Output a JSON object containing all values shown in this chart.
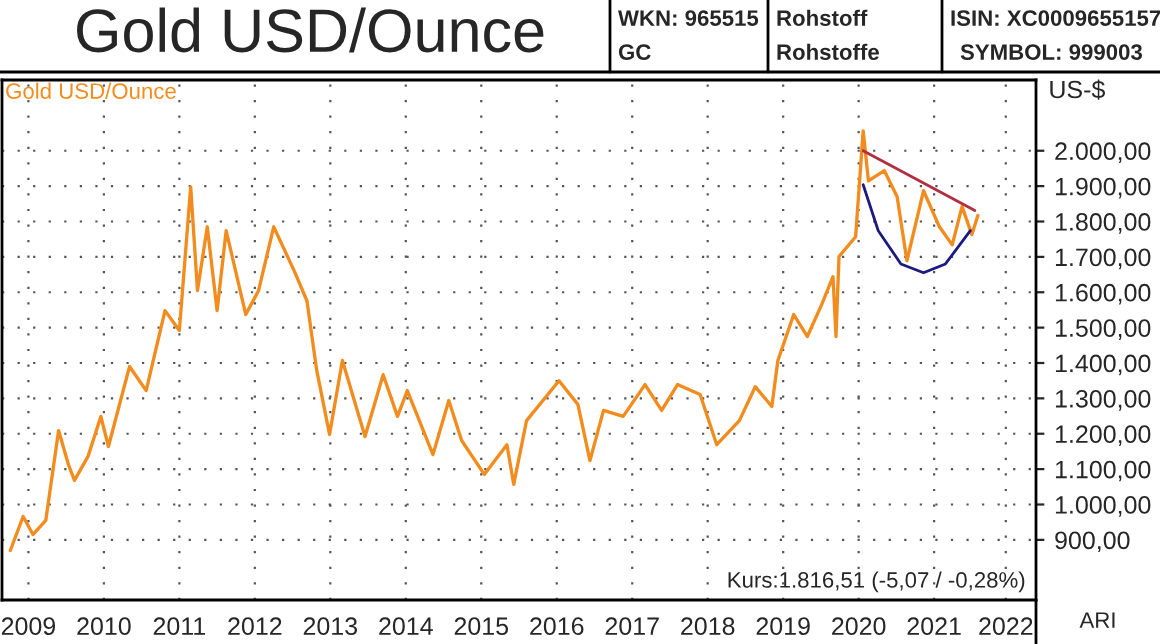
{
  "chart_data": {
    "type": "line",
    "title": "Gold USD/Ounce",
    "ylabel": "US-$",
    "annotations": [
      "WKN: 965515",
      "GC",
      "Rohstoff",
      "Rohstoffe",
      "ISIN: XC0009655157",
      "SYMBOL: 999003",
      "Kurs:1.816,51 (-5,07 / -0,28%)",
      "ARI"
    ],
    "series": [
      {
        "name": "Gold USD/Ounce",
        "color": "#f28c1e",
        "x": [
          2009.26,
          2009.43,
          2009.56,
          2009.73,
          2009.9,
          2010.03,
          2010.11,
          2010.29,
          2010.46,
          2010.56,
          2010.84,
          2011.06,
          2011.31,
          2011.5,
          2011.65,
          2011.74,
          2011.87,
          2012.0,
          2012.12,
          2012.38,
          2012.55,
          2012.75,
          2013.02,
          2013.19,
          2013.32,
          2013.49,
          2013.66,
          2013.96,
          2014.2,
          2014.39,
          2014.52,
          2014.86,
          2015.07,
          2015.24,
          2015.54,
          2015.84,
          2015.93,
          2016.1,
          2016.53,
          2016.78,
          2016.94,
          2017.12,
          2017.38,
          2017.67,
          2017.89,
          2018.1,
          2018.4,
          2018.62,
          2018.92,
          2019.13,
          2019.35,
          2019.43,
          2019.64,
          2019.82,
          2020.01,
          2020.16,
          2020.2,
          2020.24,
          2020.46,
          2020.56,
          2020.63,
          2020.84,
          2021.01,
          2021.14,
          2021.36,
          2021.57,
          2021.74,
          2021.87,
          2022.0,
          2022.08
        ],
        "values": [
          870,
          966,
          915,
          955,
          1209,
          1113,
          1068,
          1136,
          1249,
          1164,
          1390,
          1322,
          1548,
          1492,
          1898,
          1605,
          1785,
          1548,
          1774,
          1537,
          1605,
          1785,
          1661,
          1576,
          1379,
          1198,
          1407,
          1192,
          1367,
          1249,
          1322,
          1141,
          1294,
          1181,
          1085,
          1169,
          1057,
          1237,
          1350,
          1283,
          1124,
          1266,
          1249,
          1339,
          1266,
          1339,
          1311,
          1169,
          1237,
          1333,
          1277,
          1407,
          1537,
          1475,
          1565,
          1644,
          1475,
          1701,
          1757,
          2056,
          1915,
          1944,
          1870,
          1689,
          1887,
          1785,
          1734,
          1842,
          1763,
          1817
        ]
      },
      {
        "color": "#b03040",
        "x": [
          2020.56,
          2022.04
        ],
        "values": [
          2000,
          1831
        ]
      },
      {
        "color": "#1a1a80",
        "x": [
          2020.56,
          2020.76,
          2021.06,
          2021.36,
          2021.65,
          2021.98
        ],
        "values": [
          1904,
          1774,
          1680,
          1655,
          1680,
          1774
        ]
      }
    ],
    "xlim": [
      2009.15,
      2022.85
    ],
    "ylim": [
      730,
      2200
    ],
    "xticks": [
      {
        "value": 2009.5,
        "label": "2009"
      },
      {
        "value": 2010.5,
        "label": "2010"
      },
      {
        "value": 2011.5,
        "label": "2011"
      },
      {
        "value": 2012.5,
        "label": "2012"
      },
      {
        "value": 2013.5,
        "label": "2013"
      },
      {
        "value": 2014.5,
        "label": "2014"
      },
      {
        "value": 2015.5,
        "label": "2015"
      },
      {
        "value": 2016.5,
        "label": "2016"
      },
      {
        "value": 2017.5,
        "label": "2017"
      },
      {
        "value": 2018.5,
        "label": "2018"
      },
      {
        "value": 2019.5,
        "label": "2019"
      },
      {
        "value": 2020.5,
        "label": "2020"
      },
      {
        "value": 2021.5,
        "label": "2021"
      },
      {
        "value": 2022.45,
        "label": "2022"
      }
    ],
    "yticks": [
      {
        "value": 900,
        "label": "900,00"
      },
      {
        "value": 1000,
        "label": "1.000,00"
      },
      {
        "value": 1100,
        "label": "1.100,00"
      },
      {
        "value": 1200,
        "label": "1.200,00"
      },
      {
        "value": 1300,
        "label": "1.300,00"
      },
      {
        "value": 1400,
        "label": "1.400,00"
      },
      {
        "value": 1500,
        "label": "1.500,00"
      },
      {
        "value": 1600,
        "label": "1.600,00"
      },
      {
        "value": 1700,
        "label": "1.700,00"
      },
      {
        "value": 1800,
        "label": "1.800,00"
      },
      {
        "value": 1900,
        "label": "1.900,00"
      },
      {
        "value": 2000,
        "label": "2.000,00"
      }
    ],
    "grid": true,
    "legend": "top left",
    "line_style": "solid",
    "marker": "none"
  }
}
